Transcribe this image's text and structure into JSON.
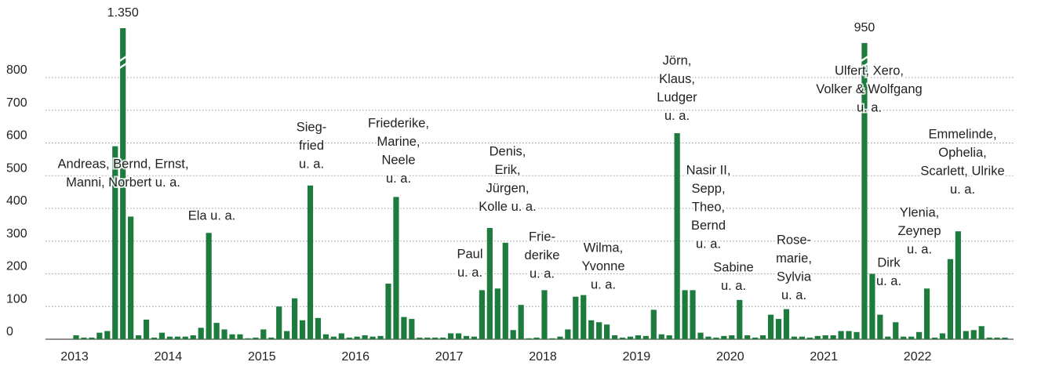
{
  "chart_data": {
    "type": "bar",
    "color": "#1e7b3e",
    "categories": [
      "2013",
      null,
      null,
      null,
      null,
      null,
      null,
      null,
      null,
      null,
      null,
      null,
      "2014",
      null,
      null,
      null,
      null,
      null,
      null,
      null,
      null,
      null,
      null,
      null,
      "2015",
      null,
      null,
      null,
      null,
      null,
      null,
      null,
      null,
      null,
      null,
      null,
      "2016",
      null,
      null,
      null,
      null,
      null,
      null,
      null,
      null,
      null,
      null,
      null,
      "2017",
      null,
      null,
      null,
      null,
      null,
      null,
      null,
      null,
      null,
      null,
      null,
      "2018",
      null,
      null,
      null,
      null,
      null,
      null,
      null,
      null,
      null,
      null,
      null,
      "2019",
      null,
      null,
      null,
      null,
      null,
      null,
      null,
      null,
      null,
      null,
      null,
      "2020",
      null,
      null,
      null,
      null,
      null,
      null,
      null,
      null,
      null,
      null,
      null,
      "2021",
      null,
      null,
      null,
      null,
      null,
      null,
      null,
      null,
      null,
      null,
      null,
      "2022",
      null,
      null,
      null,
      null,
      null,
      null,
      null,
      null,
      null,
      null,
      null
    ],
    "values": [
      12,
      5,
      5,
      20,
      25,
      590,
      1350,
      375,
      12,
      60,
      5,
      20,
      8,
      8,
      8,
      12,
      35,
      325,
      50,
      30,
      15,
      15,
      3,
      5,
      30,
      5,
      100,
      25,
      125,
      58,
      470,
      65,
      15,
      8,
      18,
      5,
      8,
      12,
      8,
      10,
      170,
      435,
      68,
      62,
      5,
      5,
      5,
      5,
      18,
      18,
      10,
      8,
      150,
      340,
      155,
      295,
      28,
      105,
      3,
      5,
      150,
      3,
      8,
      30,
      130,
      135,
      58,
      52,
      45,
      12,
      5,
      8,
      12,
      10,
      90,
      15,
      12,
      630,
      150,
      150,
      20,
      8,
      5,
      10,
      12,
      120,
      12,
      5,
      12,
      75,
      62,
      92,
      8,
      8,
      5,
      10,
      12,
      12,
      25,
      25,
      22,
      950,
      200,
      75,
      8,
      52,
      8,
      8,
      22,
      155,
      5,
      18,
      245,
      330,
      25,
      28,
      40,
      5,
      5,
      5
    ],
    "value_labels": {
      "6": "1.350",
      "101": "950"
    },
    "ylim": [
      0,
      1350
    ],
    "y_break": [
      900,
      1350
    ],
    "yticks": [
      0,
      100,
      200,
      300,
      400,
      500,
      600,
      700,
      800
    ],
    "grid": true,
    "annotations": [
      {
        "lines": [
          "Andreas, Bernd, Ernst,",
          "Manni, Norbert u. a."
        ]
      },
      {
        "lines": [
          "Ela u. a."
        ]
      },
      {
        "lines": [
          "Sieg-",
          "fried",
          "u. a."
        ]
      },
      {
        "lines": [
          "Friederike,",
          "Marine,",
          "Neele",
          "u. a."
        ]
      },
      {
        "lines": [
          "Paul",
          "u. a."
        ]
      },
      {
        "lines": [
          "Denis,",
          "Erik,",
          "Jürgen,",
          "Kolle u. a."
        ]
      },
      {
        "lines": [
          "Frie-",
          "derike",
          "u. a."
        ]
      },
      {
        "lines": [
          "Wilma,",
          "Yvonne",
          "u. a."
        ]
      },
      {
        "lines": [
          "Jörn,",
          "Klaus,",
          "Ludger",
          "u. a."
        ]
      },
      {
        "lines": [
          "Nasir II,",
          "Sepp,",
          "Theo,",
          "Bernd",
          "u. a."
        ]
      },
      {
        "lines": [
          "Sabine",
          "u. a."
        ]
      },
      {
        "lines": [
          "Rose-",
          "marie,",
          "Sylvia",
          "u. a."
        ]
      },
      {
        "lines": [
          "Ulfert, Xero,",
          "Volker & Wolfgang",
          "u. a."
        ]
      },
      {
        "lines": [
          "Dirk",
          "u. a."
        ]
      },
      {
        "lines": [
          "Ylenia,",
          "Zeynep",
          "u. a."
        ]
      },
      {
        "lines": [
          "Emmelinde,",
          "Ophelia,",
          "Scarlett, Ulrike",
          "u. a."
        ]
      }
    ]
  }
}
